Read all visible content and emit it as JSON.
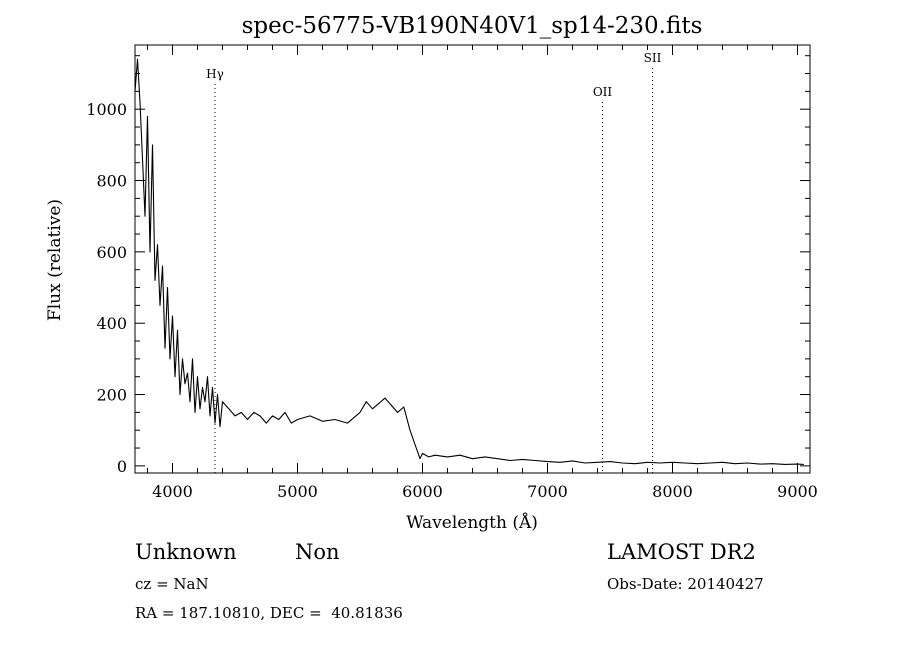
{
  "chart_data": {
    "type": "line",
    "title": "spec-56775-VB190N40V1_sp14-230.fits",
    "xlabel": "Wavelength (Å)",
    "ylabel": "Flux (relative)",
    "xlim": [
      3700,
      9100
    ],
    "ylim": [
      -20,
      1180
    ],
    "x_ticks": [
      4000,
      5000,
      6000,
      7000,
      8000,
      9000
    ],
    "y_ticks": [
      0,
      200,
      400,
      600,
      800,
      1000
    ],
    "grid": false,
    "series": [
      {
        "x": [
          3700,
          3720,
          3740,
          3760,
          3780,
          3800,
          3820,
          3840,
          3860,
          3880,
          3900,
          3920,
          3940,
          3960,
          3980,
          4000,
          4020,
          4040,
          4060,
          4080,
          4100,
          4120,
          4140,
          4160,
          4180,
          4200,
          4220,
          4240,
          4260,
          4280,
          4300,
          4320,
          4340,
          4360,
          4380,
          4400,
          4450,
          4500,
          4550,
          4600,
          4650,
          4700,
          4750,
          4800,
          4850,
          4900,
          4950,
          5000,
          5100,
          5200,
          5300,
          5400,
          5500,
          5550,
          5600,
          5650,
          5700,
          5750,
          5800,
          5850,
          5900,
          5920,
          5940,
          5960,
          5980,
          6000,
          6050,
          6100,
          6200,
          6300,
          6400,
          6500,
          6600,
          6700,
          6800,
          6900,
          7000,
          7100,
          7200,
          7300,
          7400,
          7500,
          7600,
          7700,
          7800,
          7900,
          8000,
          8100,
          8200,
          8300,
          8400,
          8500,
          8600,
          8700,
          8800,
          8900,
          9000,
          9050
        ],
        "y": [
          1050,
          1140,
          1020,
          860,
          700,
          980,
          600,
          900,
          520,
          620,
          450,
          560,
          330,
          500,
          300,
          420,
          250,
          380,
          200,
          300,
          230,
          260,
          180,
          300,
          150,
          250,
          160,
          220,
          180,
          250,
          140,
          220,
          120,
          200,
          110,
          180,
          160,
          140,
          150,
          130,
          150,
          140,
          120,
          140,
          130,
          150,
          120,
          130,
          140,
          125,
          130,
          120,
          150,
          180,
          160,
          175,
          190,
          170,
          150,
          165,
          100,
          80,
          60,
          40,
          20,
          35,
          25,
          30,
          25,
          30,
          20,
          25,
          20,
          15,
          18,
          15,
          12,
          10,
          14,
          8,
          10,
          12,
          8,
          6,
          10,
          8,
          10,
          8,
          6,
          8,
          10,
          6,
          8,
          5,
          6,
          4,
          5,
          4
        ]
      }
    ],
    "annotations": [
      "Hγ",
      "OII",
      "SII"
    ],
    "annotation_x": [
      4340,
      7440,
      7840
    ]
  },
  "info": {
    "class_label": "Unknown",
    "subclass_label": "Non",
    "survey": "LAMOST DR2",
    "redshift": "cz = NaN",
    "obs_date": "Obs-Date: 20140427",
    "coords": "RA = 187.10810, DEC =  40.81836"
  }
}
